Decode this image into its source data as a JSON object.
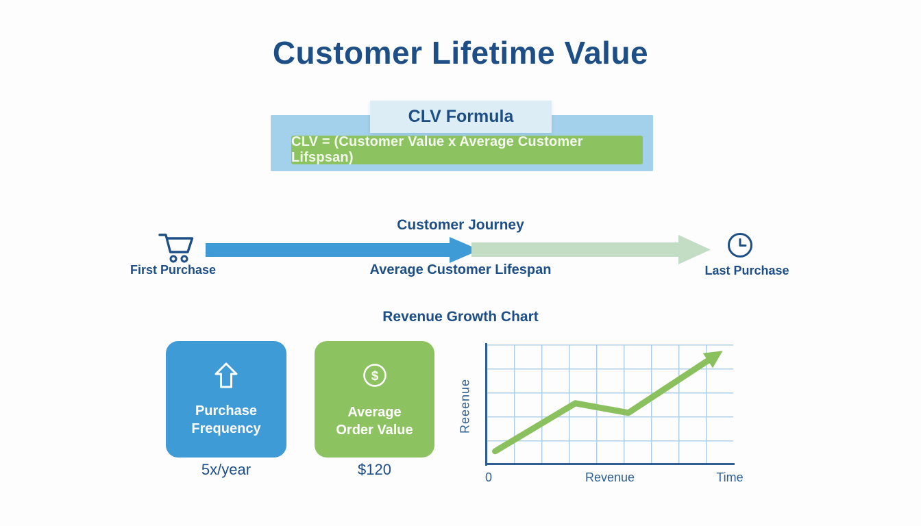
{
  "title": "Customer Lifetime Value",
  "formula": {
    "header": "CLV Formula",
    "expression": "CLV = (Customer Value x Average Customer Lifspsan)"
  },
  "journey": {
    "heading": "Customer Journey",
    "start_label": "First Purchase",
    "middle_label": "Average Customer Lifespan",
    "end_label": "Last Purchase",
    "start_icon": "shopping-cart-icon",
    "end_icon": "clock-icon"
  },
  "metrics": [
    {
      "label": "Purchase\nFrequency",
      "value": "5x/year",
      "icon": "up-arrow-icon",
      "color": "#3e9bd5"
    },
    {
      "label": "Average\nOrder Value",
      "value": "$120",
      "icon": "dollar-circle-icon",
      "icon_glyph": "$",
      "color": "#8cc360"
    }
  ],
  "chart_heading": "Revenue Growth Chart",
  "chart_data": {
    "type": "line",
    "title": "Revenue Growth Chart",
    "ylabel": "Reeenue",
    "xlabel_ticks": [
      "0",
      "Revenue",
      "Time"
    ],
    "points": [
      {
        "x": 0.035,
        "y": 0.11
      },
      {
        "x": 0.36,
        "y": 0.51
      },
      {
        "x": 0.575,
        "y": 0.43
      },
      {
        "x": 0.93,
        "y": 0.91
      }
    ],
    "xlim": [
      0,
      1
    ],
    "ylim": [
      0,
      1
    ],
    "grid": true,
    "line_color": "#8bc05e",
    "end_marker": "arrow",
    "legend": null
  },
  "colors": {
    "navy": "#1d4e86",
    "card_blue": "#3e9bd5",
    "green": "#8cc360",
    "light_green_arrow": "#c3dcc4",
    "formula_panel_blue": "#a3d0ea",
    "formula_header_blue": "#dcedf6",
    "grid_blue": "#aed0e6",
    "axis_blue": "#2e5f8f",
    "formula_text": "#f3f8ec",
    "background": "#fdfdfd"
  }
}
